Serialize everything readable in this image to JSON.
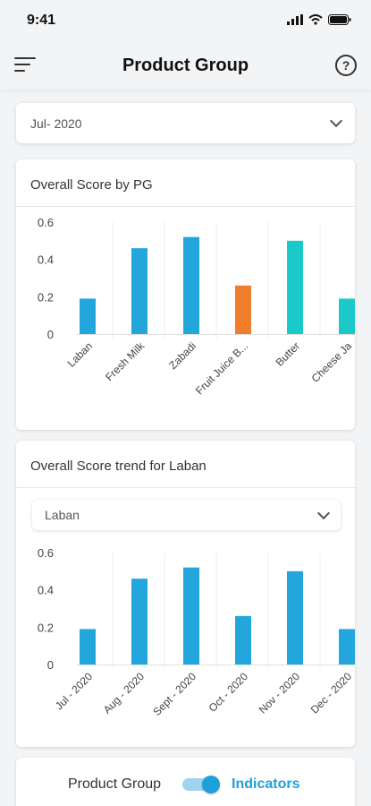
{
  "status": {
    "time": "9:41"
  },
  "header": {
    "title": "Product Group",
    "menu_icon": "hamburger-icon",
    "help_icon": "help-icon"
  },
  "month_select": {
    "value": "Jul- 2020"
  },
  "card1": {
    "title": "Overall Score by PG"
  },
  "card2": {
    "title": "Overall Score trend for Laban",
    "select_value": "Laban"
  },
  "toggle": {
    "left_label": "Product Group",
    "right_label": "Indicators",
    "on": true
  },
  "colors": {
    "blue": "#23a6db",
    "orange": "#f07d29",
    "teal": "#1cc9c9",
    "accent": "#1ea0d9"
  },
  "chart_data": [
    {
      "type": "bar",
      "title": "Overall Score by PG",
      "categories": [
        "Laban",
        "Fresh Milk",
        "Zabadi",
        "Fruit Juice B...",
        "Butter",
        "Cheese Ja"
      ],
      "values": [
        0.19,
        0.46,
        0.52,
        0.26,
        0.5,
        0.19
      ],
      "bar_colors": [
        "#23a6db",
        "#23a6db",
        "#23a6db",
        "#f07d29",
        "#1cc9c9",
        "#1cc9c9"
      ],
      "yticks": [
        "0",
        "0.2",
        "0.4",
        "0.6"
      ],
      "ylim": [
        0,
        0.6
      ],
      "grid": "vertical"
    },
    {
      "type": "bar",
      "title": "Overall Score trend for Laban",
      "categories": [
        "Jul - 2020",
        "Aug - 2020",
        "Sept - 2020",
        "Oct - 2020",
        "Nov - 2020",
        "Dec - 2020"
      ],
      "values": [
        0.19,
        0.46,
        0.52,
        0.26,
        0.5,
        0.19
      ],
      "bar_colors": [
        "#23a6db",
        "#23a6db",
        "#23a6db",
        "#23a6db",
        "#23a6db",
        "#23a6db"
      ],
      "yticks": [
        "0",
        "0.2",
        "0.4",
        "0.6"
      ],
      "ylim": [
        0,
        0.6
      ],
      "grid": "vertical"
    }
  ]
}
